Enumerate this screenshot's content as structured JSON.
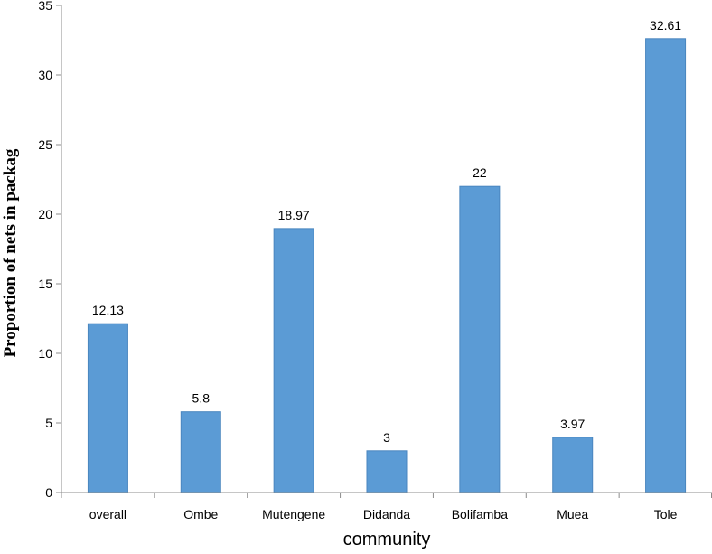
{
  "chart_data": {
    "type": "bar",
    "categories": [
      "overall",
      "Ombe",
      "Mutengene",
      "Didanda",
      "Bolifamba",
      "Muea",
      "Tole"
    ],
    "values": [
      12.13,
      5.8,
      18.97,
      3,
      22,
      3.97,
      32.61
    ],
    "data_labels": [
      "12.13",
      "5.8",
      "18.97",
      "3",
      "22",
      "3.97",
      "32.61"
    ],
    "xlabel": "community",
    "ylabel": "Proportion of nets in packag",
    "ylim": [
      0,
      35
    ],
    "yticks": [
      0,
      5,
      10,
      15,
      20,
      25,
      30,
      35
    ],
    "grid": false,
    "legend": "none",
    "bar_color": "#5b9bd5",
    "bar_edge_color": "#4a86bf"
  }
}
